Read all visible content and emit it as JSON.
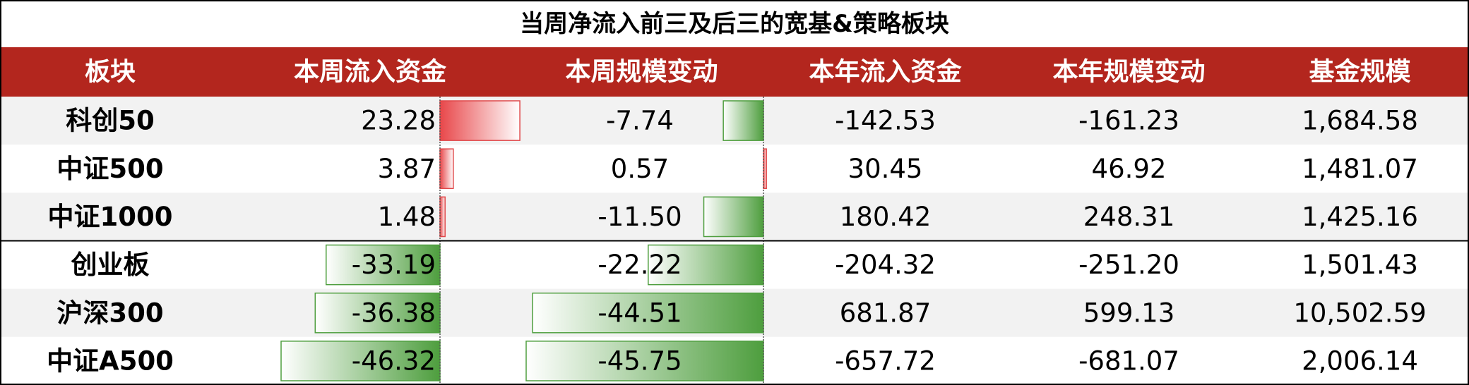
{
  "title": "当周净流入前三及后三的宽基&策略板块",
  "table": {
    "columns": [
      "板块",
      "本周流入资金",
      "本周规模变动",
      "本年流入资金",
      "本年规模变动",
      "基金规模"
    ],
    "rows": [
      [
        "科创50",
        23.28,
        -7.74,
        -142.53,
        -161.23,
        {
          "value": 1684.58,
          "label": "1,684.58"
        }
      ],
      [
        "中证500",
        3.87,
        0.57,
        30.45,
        46.92,
        {
          "value": 1481.07,
          "label": "1,481.07"
        }
      ],
      [
        "中证1000",
        1.48,
        {
          "value": -11.5,
          "label": "-11.50"
        },
        180.42,
        248.31,
        {
          "value": 1425.16,
          "label": "1,425.16"
        }
      ],
      [
        "创业板",
        -33.19,
        -22.22,
        -204.32,
        {
          "value": -251.2,
          "label": "-251.20"
        },
        {
          "value": 1501.43,
          "label": "1,501.43"
        }
      ],
      [
        "沪深300",
        -36.38,
        -44.51,
        681.87,
        599.13,
        {
          "value": 10502.59,
          "label": "10,502.59"
        }
      ],
      [
        "中证A500",
        -46.32,
        -45.75,
        -657.72,
        -681.07,
        {
          "value": 2006.14,
          "label": "2,006.14"
        }
      ]
    ]
  }
}
